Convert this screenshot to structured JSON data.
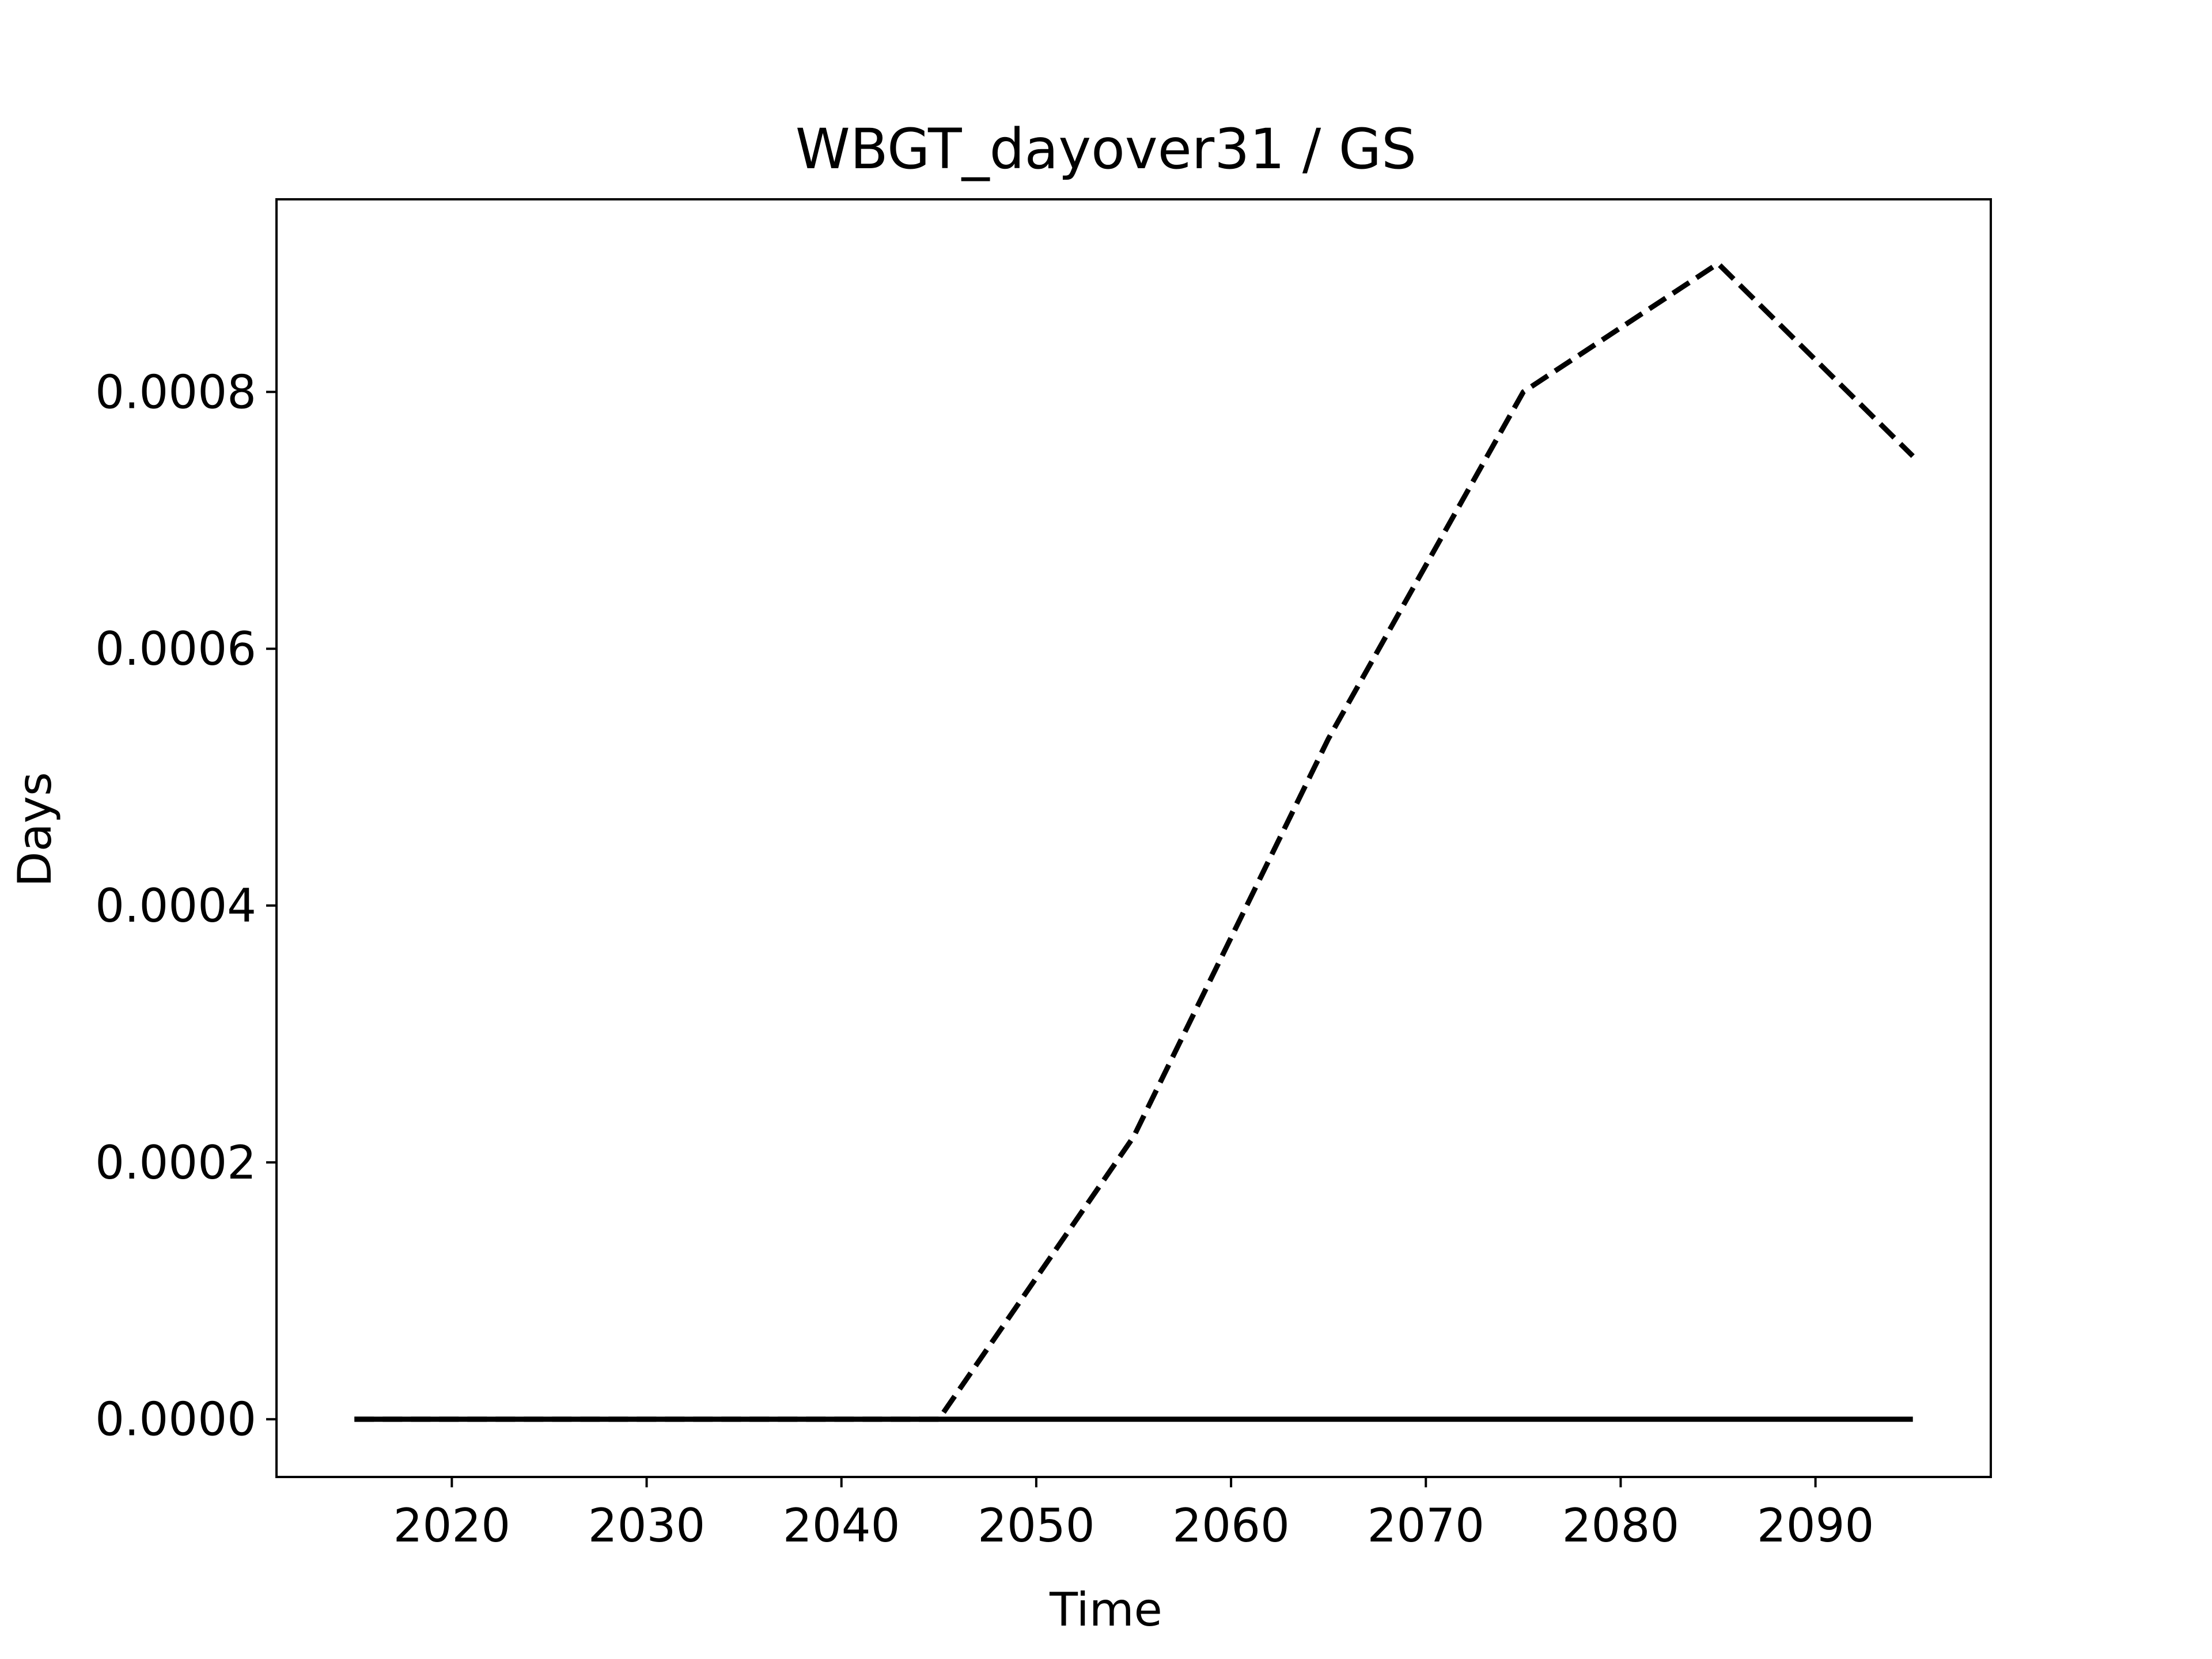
{
  "chart_data": {
    "type": "line",
    "title": "WBGT_dayover31 / GS",
    "xlabel": "Time",
    "ylabel": "Days",
    "xlim": [
      2011,
      2099
    ],
    "ylim": [
      -4.5e-05,
      0.00095
    ],
    "xticks": [
      2020,
      2030,
      2040,
      2050,
      2060,
      2070,
      2080,
      2090
    ],
    "xtick_labels": [
      "2020",
      "2030",
      "2040",
      "2050",
      "2060",
      "2070",
      "2080",
      "2090"
    ],
    "yticks": [
      0.0,
      0.0002,
      0.0004,
      0.0006,
      0.0008
    ],
    "ytick_labels": [
      "0.0000",
      "0.0002",
      "0.0004",
      "0.0006",
      "0.0008"
    ],
    "grid": false,
    "legend": "none",
    "series": [
      {
        "style": "dashed",
        "color": "#000000",
        "x": [
          2015,
          2025,
          2035,
          2045,
          2055,
          2065,
          2075,
          2085,
          2095
        ],
        "y": [
          0.0,
          0.0,
          0.0,
          0.0,
          0.00022,
          0.00053,
          0.0008,
          0.0009,
          0.00075
        ]
      },
      {
        "style": "solid",
        "color": "#000000",
        "x": [
          2015,
          2025,
          2035,
          2045,
          2055,
          2065,
          2075,
          2085,
          2095
        ],
        "y": [
          0.0,
          0.0,
          0.0,
          0.0,
          0.0,
          0.0,
          0.0,
          0.0,
          0.0
        ]
      }
    ]
  }
}
